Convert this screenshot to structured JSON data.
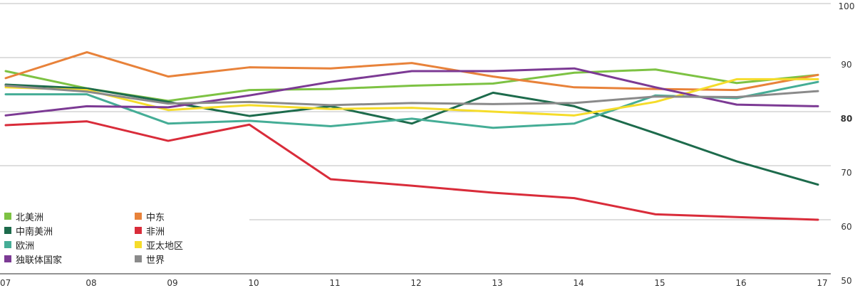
{
  "chart_data": {
    "type": "line",
    "categories": [
      "07",
      "08",
      "09",
      "10",
      "11",
      "12",
      "13",
      "14",
      "15",
      "16",
      "17"
    ],
    "y_ticks": [
      "100",
      "90",
      "80",
      "70",
      "60",
      "50"
    ],
    "ylim": [
      50,
      100
    ],
    "series": [
      {
        "name": "北美洲",
        "color": "#7dc243",
        "values": [
          87.5,
          84.3,
          82.0,
          84.0,
          84.2,
          84.8,
          85.2,
          87.2,
          87.8,
          85.3,
          86.8
        ]
      },
      {
        "name": "中东",
        "color": "#e8823a",
        "values": [
          86.2,
          91.0,
          86.5,
          88.2,
          88.0,
          89.0,
          86.5,
          84.5,
          84.2,
          84.0,
          86.8
        ]
      },
      {
        "name": "中南美洲",
        "color": "#1d6b4c",
        "values": [
          85.0,
          84.3,
          81.8,
          79.2,
          81.0,
          77.8,
          83.5,
          81.0,
          76.0,
          70.8,
          66.5
        ]
      },
      {
        "name": "非洲",
        "color": "#d92c3a",
        "values": [
          77.5,
          78.2,
          74.6,
          77.6,
          67.5,
          66.3,
          65.0,
          64.0,
          61.0,
          60.5,
          60.0
        ]
      },
      {
        "name": "欧洲",
        "color": "#45ad96",
        "values": [
          83.2,
          83.2,
          77.8,
          78.3,
          77.3,
          78.7,
          77.0,
          77.8,
          83.0,
          82.5,
          85.5
        ]
      },
      {
        "name": "亚太地区",
        "color": "#f5dc2a",
        "values": [
          84.5,
          84.0,
          80.3,
          81.2,
          80.5,
          80.7,
          80.0,
          79.3,
          81.8,
          86.0,
          86.0
        ]
      },
      {
        "name": "独联体国家",
        "color": "#7c3a94",
        "values": [
          79.3,
          81.0,
          80.8,
          83.0,
          85.5,
          87.5,
          87.5,
          88.0,
          84.5,
          81.3,
          81.0
        ]
      },
      {
        "name": "世界",
        "color": "#8a8a8a",
        "values": [
          84.8,
          83.7,
          81.5,
          81.8,
          81.2,
          81.6,
          81.4,
          81.6,
          82.8,
          82.7,
          83.8
        ]
      }
    ],
    "legend_position": "bottom-left",
    "grid": true
  }
}
